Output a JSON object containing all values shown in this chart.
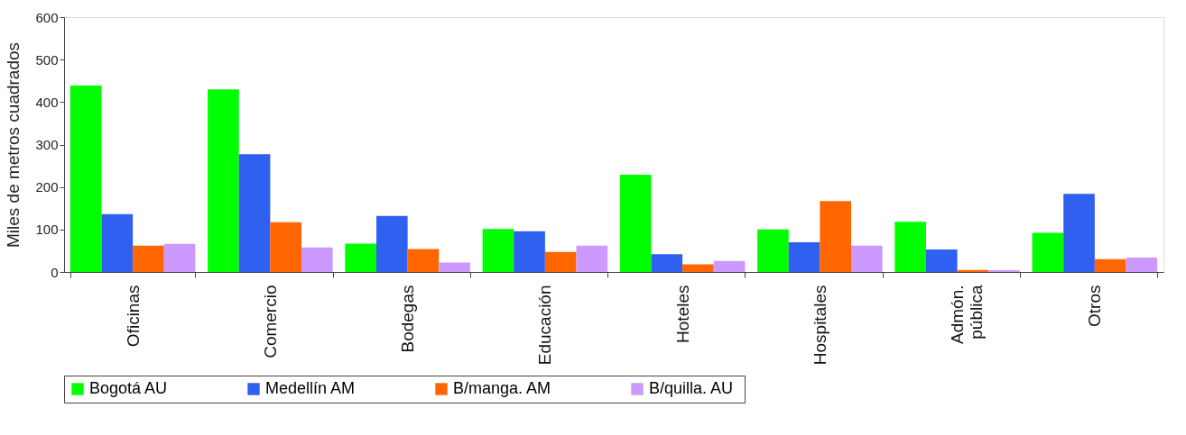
{
  "chart_data": {
    "type": "bar",
    "ylabel": "Miles de metros cuadrados",
    "categories": [
      "Oficinas",
      "Comercio",
      "Bodegas",
      "Educación",
      "Hoteles",
      "Hospitales",
      "Admón.\npública",
      "Otros"
    ],
    "series": [
      {
        "name": "Bogotá  AU",
        "color": "#00ff00",
        "values": [
          439,
          430,
          67,
          101,
          229,
          100,
          118,
          92
        ]
      },
      {
        "name": "Medellín  AM",
        "color": "#3060f0",
        "values": [
          136,
          277,
          132,
          96,
          42,
          70,
          53,
          184
        ]
      },
      {
        "name": "B/manga.  AM",
        "color": "#ff6600",
        "values": [
          62,
          117,
          54,
          47,
          18,
          167,
          5,
          30
        ]
      },
      {
        "name": "B/quilla.  AU",
        "color": "#cc99ff",
        "values": [
          66,
          58,
          22,
          62,
          26,
          62,
          4,
          34
        ]
      }
    ],
    "ylim": [
      0,
      600
    ],
    "yticks": [
      0,
      100,
      200,
      300,
      400,
      500,
      600
    ],
    "grid": false,
    "legend": "bottom"
  }
}
